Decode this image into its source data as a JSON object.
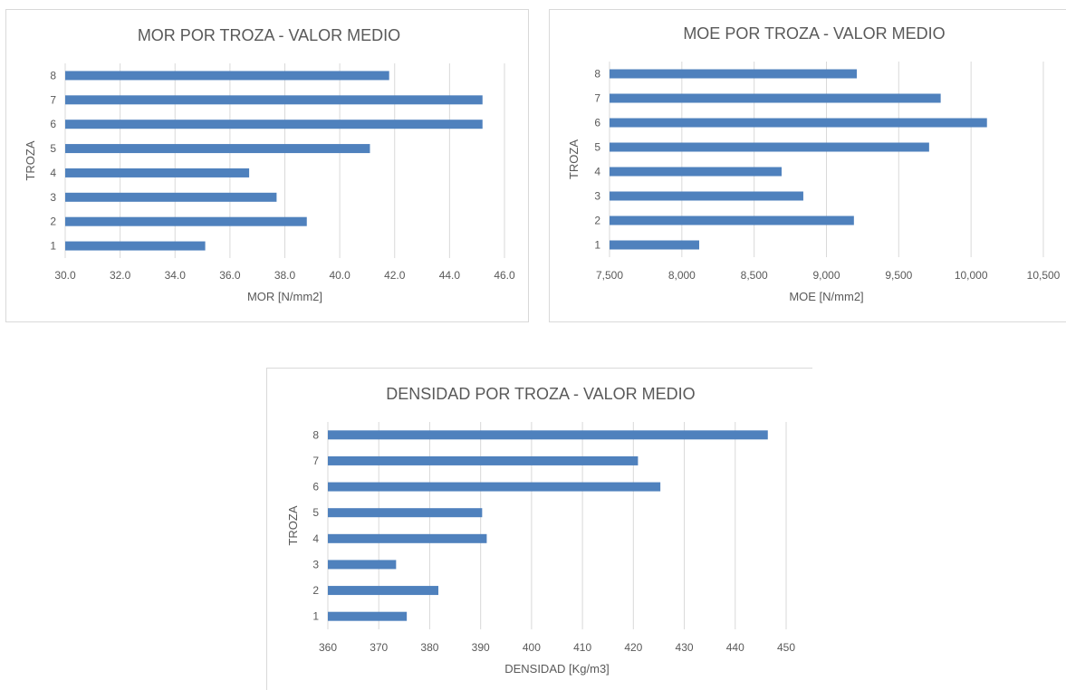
{
  "chart_data": [
    {
      "type": "bar",
      "orientation": "horizontal",
      "title": "MOR POR TROZA - VALOR MEDIO",
      "xlabel": "MOR [N/mm2]",
      "ylabel": "TROZA",
      "categories": [
        "1",
        "2",
        "3",
        "4",
        "5",
        "6",
        "7",
        "8"
      ],
      "values": [
        35.1,
        38.8,
        37.7,
        36.7,
        41.1,
        45.2,
        45.2,
        41.8
      ],
      "xlim": [
        30,
        46
      ],
      "xticks": [
        "30.0",
        "32.0",
        "34.0",
        "36.0",
        "38.0",
        "40.0",
        "42.0",
        "44.0",
        "46.0"
      ],
      "grid": true,
      "color": "#4f81bd"
    },
    {
      "type": "bar",
      "orientation": "horizontal",
      "title": "MOE POR TROZA - VALOR MEDIO",
      "xlabel": "MOE [N/mm2]",
      "ylabel": "TROZA",
      "categories": [
        "1",
        "2",
        "3",
        "4",
        "5",
        "6",
        "7",
        "8"
      ],
      "values": [
        8120,
        9190,
        8840,
        8690,
        9710,
        10110,
        9790,
        9210
      ],
      "xlim": [
        7500,
        10500
      ],
      "xticks": [
        "7,500",
        "8,000",
        "8,500",
        "9,000",
        "9,500",
        "10,000",
        "10,500"
      ],
      "grid": true,
      "color": "#4f81bd"
    },
    {
      "type": "bar",
      "orientation": "horizontal",
      "title": "DENSIDAD POR TROZA - VALOR MEDIO",
      "xlabel": "DENSIDAD [Kg/m3]",
      "ylabel": "TROZA",
      "categories": [
        "1",
        "2",
        "3",
        "4",
        "5",
        "6",
        "7",
        "8"
      ],
      "values": [
        375.5,
        381.7,
        373.4,
        391.2,
        390.3,
        425.3,
        420.9,
        446.4
      ],
      "xlim": [
        360,
        450
      ],
      "xticks": [
        "360",
        "370",
        "380",
        "390",
        "400",
        "410",
        "420",
        "430",
        "440",
        "450"
      ],
      "grid": true,
      "color": "#4f81bd"
    }
  ]
}
